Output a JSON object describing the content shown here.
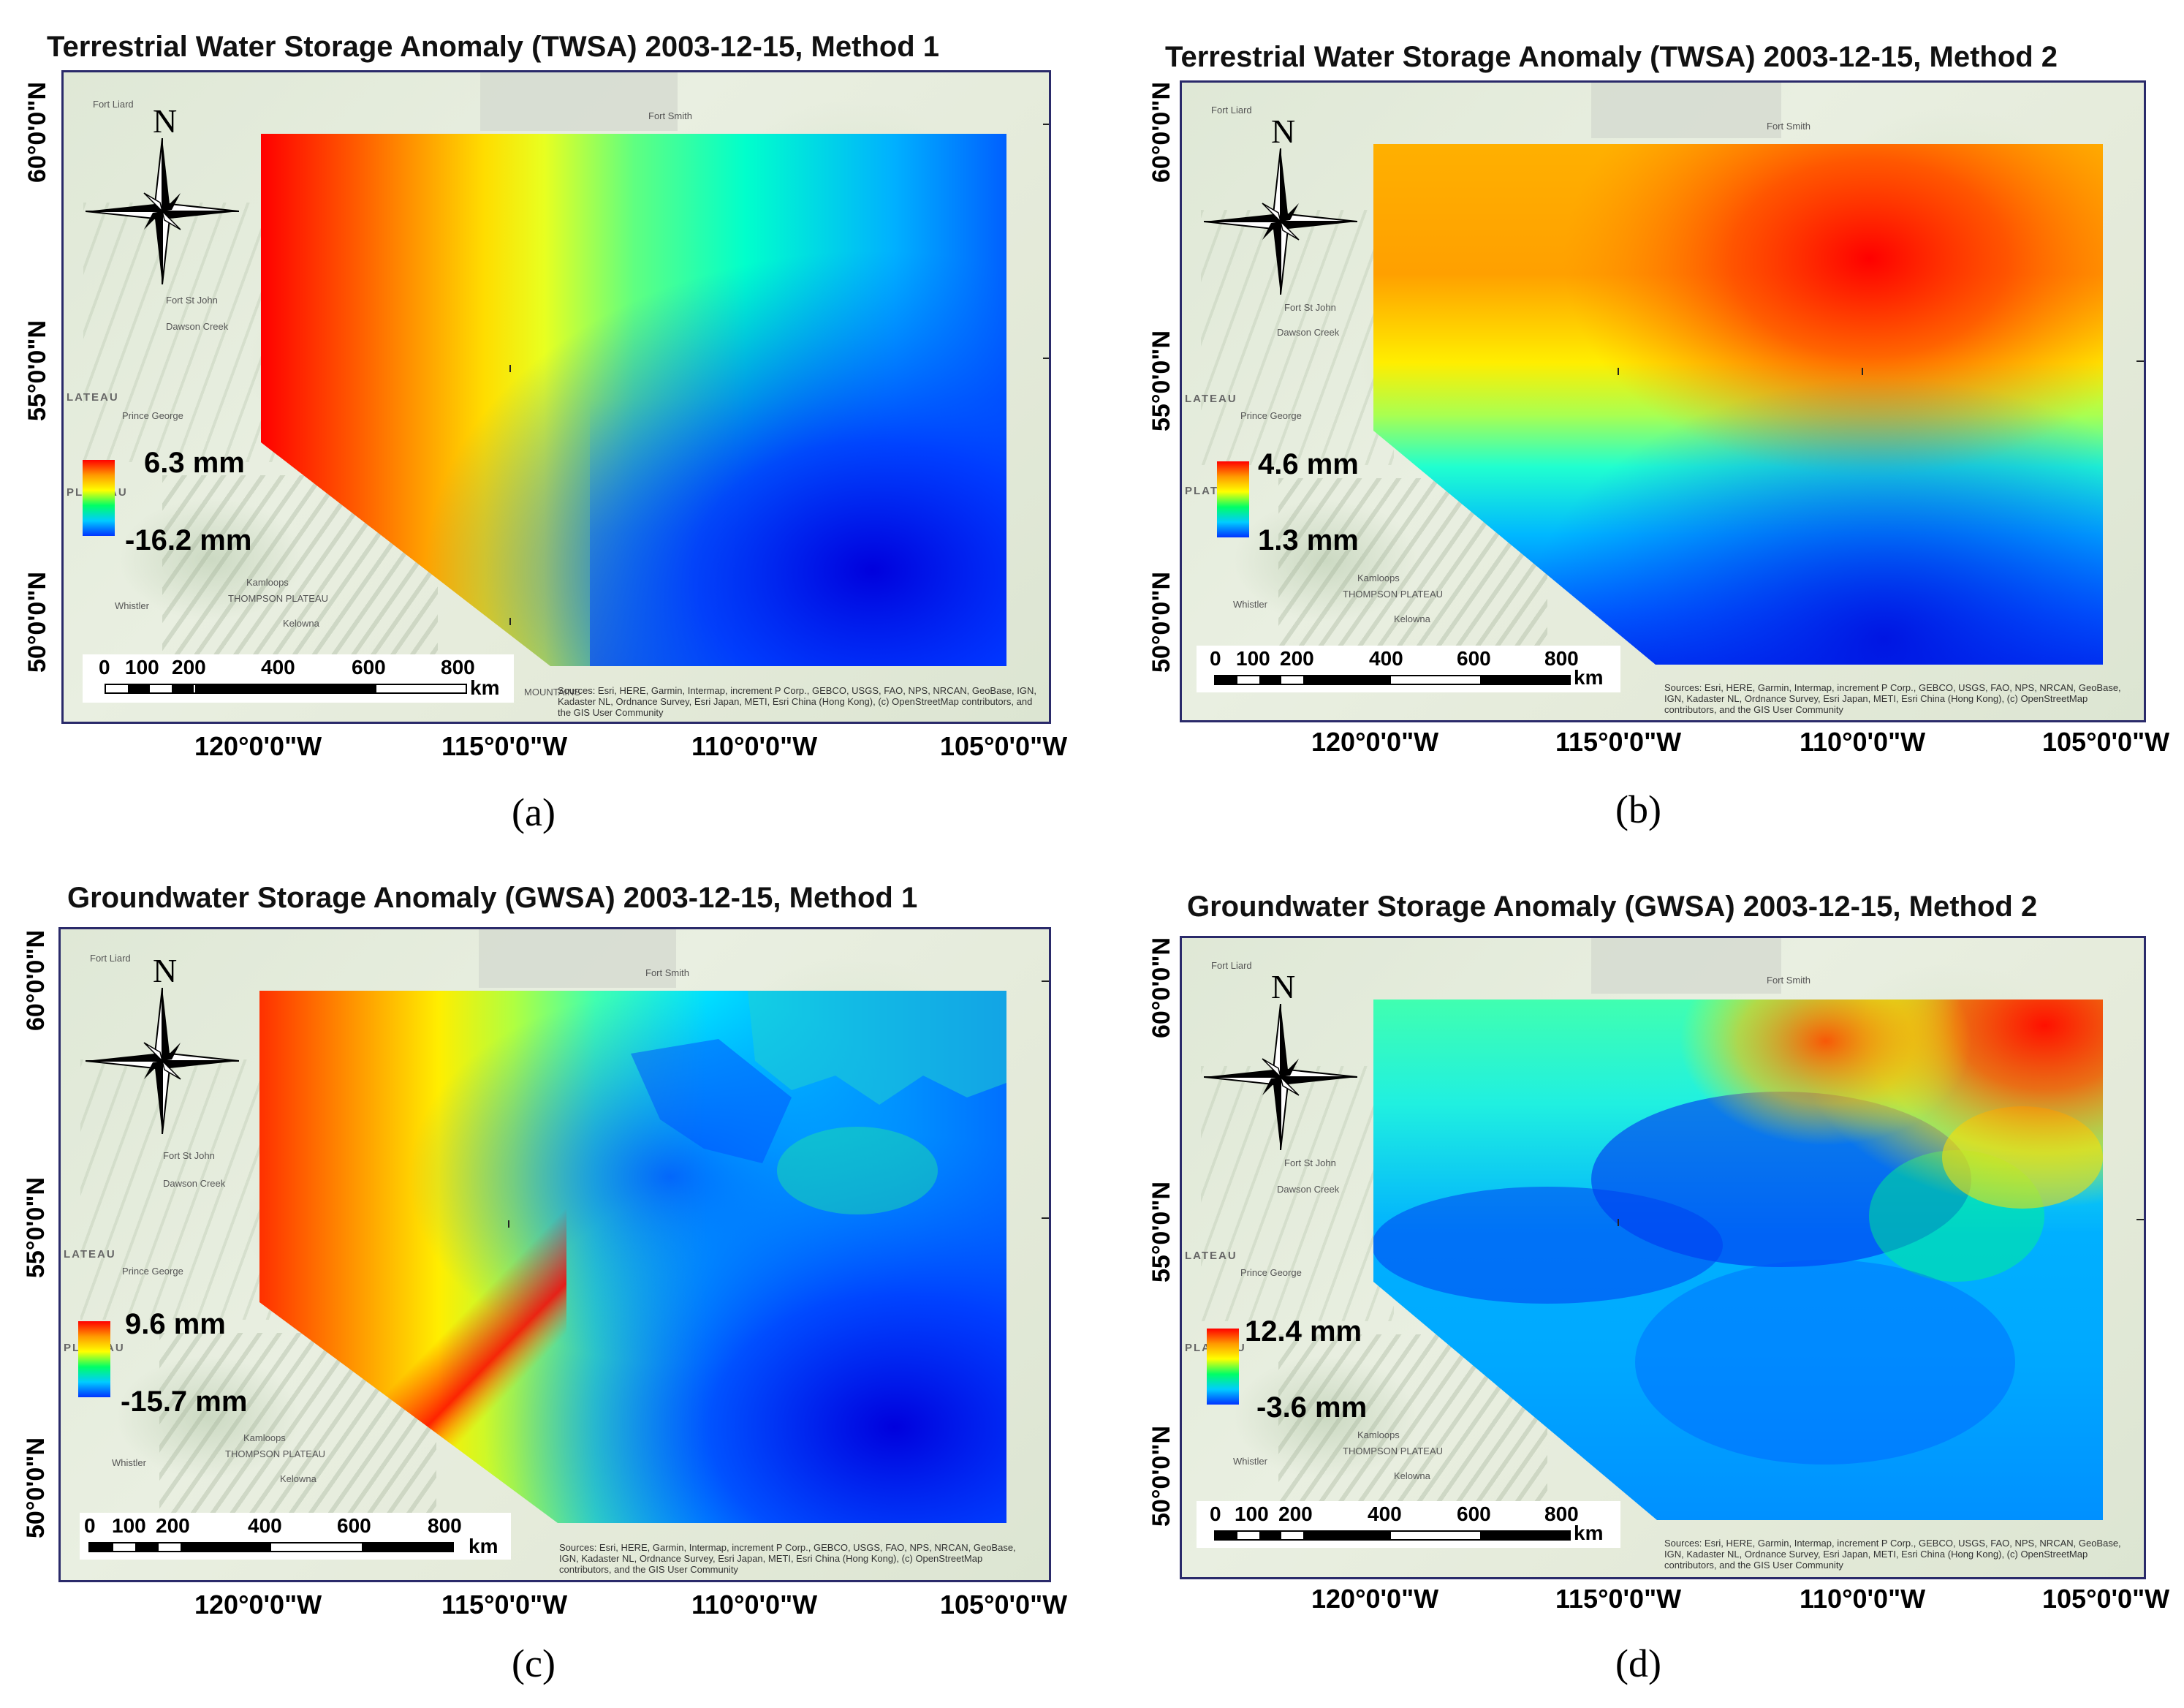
{
  "panels": [
    {
      "title": "Terrestrial Water Storage Anomaly (TWSA) 2003-12-15, Method 1",
      "caption": "(a)",
      "legend": {
        "max": "6.3 mm",
        "min": "-16.2 mm",
        "max_value_mm": 6.3,
        "min_value_mm": -16.2
      },
      "lat_labels": [
        "60°0'0\"N",
        "55°0'0\"N",
        "50°0'0\"N"
      ],
      "lon_labels": [
        "120°0'0\"W",
        "115°0'0\"W",
        "110°0'0\"W",
        "105°0'0\"W"
      ],
      "scale_ticks": [
        "0",
        "100",
        "200",
        "400",
        "600",
        "800"
      ],
      "scale_unit": "km",
      "north": "N",
      "attribution": "Sources: Esri, HERE, Garmin, Intermap, increment P Corp., GEBCO, USGS, FAO, NPS, NRCAN, GeoBase, IGN, Kadaster NL, Ordnance Survey, Esri Japan, METI, Esri China (Hong Kong), (c) OpenStreetMap contributors, and the GIS User Community"
    },
    {
      "title": "Terrestrial Water Storage Anomaly (TWSA) 2003-12-15, Method 2",
      "caption": "(b)",
      "legend": {
        "max": "4.6 mm",
        "min": "1.3 mm",
        "max_value_mm": 4.6,
        "min_value_mm": 1.3
      },
      "lat_labels": [
        "60°0'0\"N",
        "55°0'0\"N",
        "50°0'0\"N"
      ],
      "lon_labels": [
        "120°0'0\"W",
        "115°0'0\"W",
        "110°0'0\"W",
        "105°0'0\"W"
      ],
      "scale_ticks": [
        "0",
        "100",
        "200",
        "400",
        "600",
        "800"
      ],
      "scale_unit": "km",
      "north": "N",
      "attribution": "Sources: Esri, HERE, Garmin, Intermap, increment P Corp., GEBCO, USGS, FAO, NPS, NRCAN, GeoBase, IGN, Kadaster NL, Ordnance Survey, Esri Japan, METI, Esri China (Hong Kong), (c) OpenStreetMap contributors, and the GIS User Community"
    },
    {
      "title": "Groundwater Storage Anomaly (GWSA) 2003-12-15, Method 1",
      "caption": "(c)",
      "legend": {
        "max": "9.6 mm",
        "min": "-15.7 mm",
        "max_value_mm": 9.6,
        "min_value_mm": -15.7
      },
      "lat_labels": [
        "60°0'0\"N",
        "55°0'0\"N",
        "50°0'0\"N"
      ],
      "lon_labels": [
        "120°0'0\"W",
        "115°0'0\"W",
        "110°0'0\"W",
        "105°0'0\"W"
      ],
      "scale_ticks": [
        "0",
        "100",
        "200",
        "400",
        "600",
        "800"
      ],
      "scale_unit": "km",
      "north": "N",
      "attribution": "Sources: Esri, HERE, Garmin, Intermap, increment P Corp., GEBCO, USGS, FAO, NPS, NRCAN, GeoBase, IGN, Kadaster NL, Ordnance Survey, Esri Japan, METI, Esri China (Hong Kong), (c) OpenStreetMap contributors, and the GIS User Community"
    },
    {
      "title": "Groundwater Storage Anomaly (GWSA) 2003-12-15, Method 2",
      "caption": "(d)",
      "legend": {
        "max": "12.4 mm",
        "min": "-3.6 mm",
        "max_value_mm": 12.4,
        "min_value_mm": -3.6
      },
      "lat_labels": [
        "60°0'0\"N",
        "55°0'0\"N",
        "50°0'0\"N"
      ],
      "lon_labels": [
        "120°0'0\"W",
        "115°0'0\"W",
        "110°0'0\"W",
        "105°0'0\"W"
      ],
      "scale_ticks": [
        "0",
        "100",
        "200",
        "400",
        "600",
        "800"
      ],
      "scale_unit": "km",
      "north": "N",
      "attribution": "Sources: Esri, HERE, Garmin, Intermap, increment P Corp., GEBCO, USGS, FAO, NPS, NRCAN, GeoBase, IGN, Kadaster NL, Ordnance Survey, Esri Japan, METI, Esri China (Hong Kong), (c) OpenStreetMap contributors, and the GIS User Community"
    }
  ],
  "basemap_places": {
    "fort_liard": "Fort Liard",
    "fort_smith": "Fort Smith",
    "fort_st_john": "Fort St John",
    "dawson_creek": "Dawson Creek",
    "plateau": "LATEAU",
    "prince_george": "Prince George",
    "plateau2": "PLATEAU",
    "kamloops": "Kamloops",
    "thompson_plateau": "THOMPSON PLATEAU",
    "kelowna": "Kelowna",
    "whistler": "Whistler",
    "mountains": "MOUNTAINS"
  },
  "colors": {
    "high": "#ff0000",
    "mid_high": "#ffff00",
    "mid": "#00ff66",
    "low": "#0000dd",
    "frame": "#2a2a6a"
  },
  "icons": {
    "compass": "north-arrow-compass-icon"
  }
}
